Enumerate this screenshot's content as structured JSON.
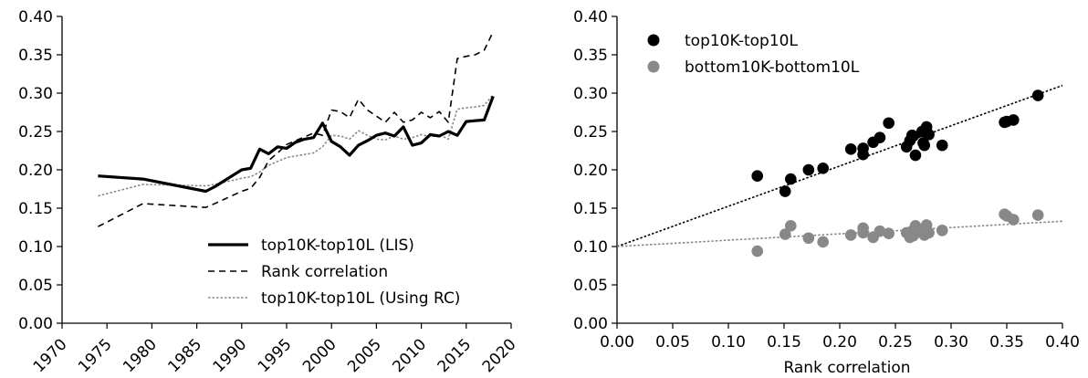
{
  "chart_data": [
    {
      "type": "line",
      "title": "",
      "xlabel": "",
      "ylabel": "",
      "xlim": [
        1970,
        2020
      ],
      "ylim": [
        0,
        0.4
      ],
      "xticks": [
        "1970",
        "1975",
        "1980",
        "1985",
        "1990",
        "1995",
        "2000",
        "2005",
        "2010",
        "2015",
        "2020"
      ],
      "yticks": [
        "0.00",
        "0.05",
        "0.10",
        "0.15",
        "0.20",
        "0.25",
        "0.30",
        "0.35",
        "0.40"
      ],
      "grid": false,
      "legend": {
        "placement": "lower-right"
      },
      "series": [
        {
          "name": "top10K-top10L (LIS)",
          "style": "solid-thick",
          "color": "#000000",
          "x": [
            1974,
            1979,
            1986,
            1987,
            1990,
            1991,
            1992,
            1993,
            1994,
            1995,
            1996,
            1997,
            1998,
            1999,
            2000,
            2001,
            2002,
            2003,
            2004,
            2005,
            2006,
            2007,
            2008,
            2009,
            2010,
            2011,
            2012,
            2013,
            2014,
            2015,
            2016,
            2017,
            2018
          ],
          "y": [
            0.192,
            0.188,
            0.172,
            0.178,
            0.2,
            0.202,
            0.227,
            0.221,
            0.23,
            0.228,
            0.236,
            0.24,
            0.242,
            0.261,
            0.237,
            0.23,
            0.219,
            0.232,
            0.238,
            0.245,
            0.248,
            0.244,
            0.256,
            0.232,
            0.235,
            0.246,
            0.244,
            0.25,
            0.245,
            0.263,
            0.264,
            0.265,
            0.296
          ]
        },
        {
          "name": "Rank correlation",
          "style": "dashed",
          "color": "#000000",
          "x": [
            1974,
            1979,
            1986,
            1987,
            1990,
            1991,
            1992,
            1993,
            1994,
            1995,
            1996,
            1997,
            1998,
            1999,
            2000,
            2001,
            2002,
            2003,
            2004,
            2005,
            2006,
            2007,
            2008,
            2009,
            2010,
            2011,
            2012,
            2013,
            2014,
            2015,
            2016,
            2017,
            2018
          ],
          "y": [
            0.126,
            0.156,
            0.151,
            0.156,
            0.172,
            0.176,
            0.19,
            0.212,
            0.222,
            0.233,
            0.238,
            0.243,
            0.248,
            0.245,
            0.278,
            0.276,
            0.268,
            0.292,
            0.278,
            0.27,
            0.262,
            0.275,
            0.262,
            0.265,
            0.275,
            0.268,
            0.276,
            0.262,
            0.345,
            0.348,
            0.35,
            0.356,
            0.38
          ]
        },
        {
          "name": "top10K-top10L (Using RC)",
          "style": "dotted-gray",
          "color": "#888888",
          "x": [
            1974,
            1979,
            1986,
            1987,
            1990,
            1991,
            1992,
            1993,
            1994,
            1995,
            1996,
            1997,
            1998,
            1999,
            2000,
            2001,
            2002,
            2003,
            2004,
            2005,
            2006,
            2007,
            2008,
            2009,
            2010,
            2011,
            2012,
            2013,
            2014,
            2015,
            2016,
            2017,
            2018
          ],
          "y": [
            0.166,
            0.181,
            0.179,
            0.181,
            0.189,
            0.191,
            0.197,
            0.206,
            0.211,
            0.216,
            0.218,
            0.22,
            0.222,
            0.23,
            0.245,
            0.244,
            0.24,
            0.251,
            0.245,
            0.24,
            0.239,
            0.244,
            0.24,
            0.242,
            0.246,
            0.243,
            0.246,
            0.24,
            0.279,
            0.281,
            0.282,
            0.284,
            0.298
          ]
        }
      ]
    },
    {
      "type": "scatter",
      "title": "",
      "xlabel": "Rank correlation",
      "ylabel": "",
      "xlim": [
        0,
        0.4
      ],
      "ylim": [
        0,
        0.4
      ],
      "xticks": [
        "0.00",
        "0.05",
        "0.10",
        "0.15",
        "0.20",
        "0.25",
        "0.30",
        "0.35",
        "0.40"
      ],
      "yticks": [
        "0.00",
        "0.05",
        "0.10",
        "0.15",
        "0.20",
        "0.25",
        "0.30",
        "0.35",
        "0.40"
      ],
      "grid": false,
      "legend": {
        "placement": "top-left"
      },
      "series": [
        {
          "name": "top10K-top10L",
          "color": "#000000",
          "points": [
            [
              0.126,
              0.192
            ],
            [
              0.151,
              0.172
            ],
            [
              0.156,
              0.188
            ],
            [
              0.172,
              0.2
            ],
            [
              0.185,
              0.202
            ],
            [
              0.21,
              0.227
            ],
            [
              0.221,
              0.228
            ],
            [
              0.221,
              0.22
            ],
            [
              0.23,
              0.236
            ],
            [
              0.236,
              0.242
            ],
            [
              0.244,
              0.261
            ],
            [
              0.26,
              0.23
            ],
            [
              0.263,
              0.238
            ],
            [
              0.265,
              0.245
            ],
            [
              0.266,
              0.244
            ],
            [
              0.268,
              0.219
            ],
            [
              0.274,
              0.25
            ],
            [
              0.275,
              0.235
            ],
            [
              0.276,
              0.232
            ],
            [
              0.278,
              0.256
            ],
            [
              0.28,
              0.246
            ],
            [
              0.292,
              0.232
            ],
            [
              0.348,
              0.262
            ],
            [
              0.35,
              0.263
            ],
            [
              0.356,
              0.265
            ],
            [
              0.378,
              0.297
            ]
          ]
        },
        {
          "name": "bottom10K-bottom10L",
          "color": "#888888",
          "points": [
            [
              0.126,
              0.094
            ],
            [
              0.151,
              0.116
            ],
            [
              0.156,
              0.127
            ],
            [
              0.172,
              0.111
            ],
            [
              0.185,
              0.106
            ],
            [
              0.21,
              0.115
            ],
            [
              0.221,
              0.118
            ],
            [
              0.221,
              0.124
            ],
            [
              0.23,
              0.112
            ],
            [
              0.236,
              0.12
            ],
            [
              0.244,
              0.117
            ],
            [
              0.26,
              0.118
            ],
            [
              0.263,
              0.112
            ],
            [
              0.265,
              0.12
            ],
            [
              0.266,
              0.114
            ],
            [
              0.268,
              0.127
            ],
            [
              0.274,
              0.118
            ],
            [
              0.275,
              0.122
            ],
            [
              0.276,
              0.115
            ],
            [
              0.278,
              0.128
            ],
            [
              0.28,
              0.118
            ],
            [
              0.292,
              0.121
            ],
            [
              0.348,
              0.142
            ],
            [
              0.35,
              0.14
            ],
            [
              0.356,
              0.135
            ],
            [
              0.378,
              0.141
            ]
          ]
        },
        {
          "name": "",
          "kind": "fit-line",
          "style": "dotted",
          "color": "#000000",
          "x": [
            0,
            0.4
          ],
          "y": [
            0.1,
            0.31
          ]
        },
        {
          "name": "",
          "kind": "fit-line",
          "style": "dotted",
          "color": "#888888",
          "x": [
            0,
            0.4
          ],
          "y": [
            0.1,
            0.133
          ]
        }
      ]
    }
  ]
}
